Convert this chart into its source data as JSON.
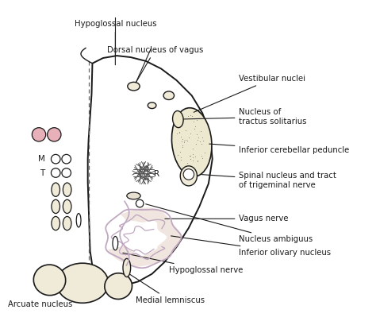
{
  "bg_color": "#ffffff",
  "outline_color": "#1a1a1a",
  "fill_cream": "#f0ead8",
  "fill_pink": "#e8b0b8",
  "fill_dotted": "#ede8d0",
  "fill_olivary": "#ede8e0",
  "label_color": "#1a1a1a",
  "labels": {
    "hypoglossal_nucleus": "Hypoglossal nucleus",
    "dorsal_nucleus_vagus": "Dorsal nucleus of vagus",
    "vestibular_nuclei": "Vestibular nuclei",
    "nucleus_tractus": "Nucleus of\ntractus solitarius",
    "inferior_cerebellar": "Inferior cerebellar peduncle",
    "spinal_nucleus": "Spinal nucleus and tract\nof trigeminal nerve",
    "vagus_nerve": "Vagus nerve",
    "nucleus_ambiguus": "Nucleus ambiguus",
    "inferior_olivary": "Inferior olivary nucleus",
    "hypoglossal_nerve": "Hypoglossal nerve",
    "arcuate_nucleus": "Arcuate nucleus",
    "medial_lemniscus": "Medial lemniscus"
  }
}
